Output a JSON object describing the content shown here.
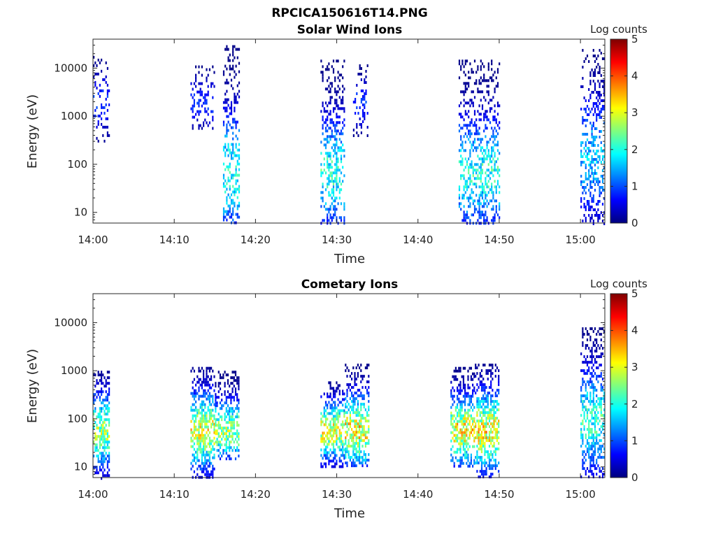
{
  "figure": {
    "title": "RPCICA150616T14.PNG"
  },
  "colormap": [
    "#00007f",
    "#0000ff",
    "#007fff",
    "#00ffff",
    "#7fff7f",
    "#ffff00",
    "#ff7f00",
    "#ff0000",
    "#7f0000"
  ],
  "chart_data": [
    {
      "type": "heatmap",
      "title": "Solar Wind Ions",
      "xlabel": "Time",
      "ylabel": "Energy (eV)",
      "yscale": "log",
      "ylim": [
        6,
        40000
      ],
      "xlim": [
        "14:00",
        "15:03"
      ],
      "x_ticks": [
        "14:00",
        "14:10",
        "14:20",
        "14:30",
        "14:40",
        "14:50",
        "15:00"
      ],
      "y_ticks": [
        "10",
        "100",
        "1000",
        "10000"
      ],
      "colorbar": {
        "label": "Log counts",
        "range": [
          0,
          5
        ],
        "ticks": [
          "0",
          "1",
          "2",
          "3",
          "4",
          "5"
        ]
      },
      "bursts": [
        {
          "start": "14:00",
          "end": "14:02",
          "e_low": 300,
          "e_high": 18000,
          "peak_energy": 2000,
          "peak_log_counts": 1.0,
          "density": 0.35
        },
        {
          "start": "14:12",
          "end": "14:15",
          "e_low": 500,
          "e_high": 13000,
          "peak_energy": 2000,
          "peak_log_counts": 1.0,
          "density": 0.25
        },
        {
          "start": "14:16",
          "end": "14:18",
          "e_low": 6,
          "e_high": 30000,
          "peak_energy": 70,
          "peak_log_counts": 2.3,
          "density": 0.55
        },
        {
          "start": "14:28",
          "end": "14:31",
          "e_low": 6,
          "e_high": 15000,
          "peak_energy": 70,
          "peak_log_counts": 2.3,
          "density": 0.55
        },
        {
          "start": "14:32",
          "end": "14:34",
          "e_low": 400,
          "e_high": 12000,
          "peak_energy": 2000,
          "peak_log_counts": 1.0,
          "density": 0.3
        },
        {
          "start": "14:45",
          "end": "14:50",
          "e_low": 6,
          "e_high": 15000,
          "peak_energy": 70,
          "peak_log_counts": 2.3,
          "density": 0.55
        },
        {
          "start": "15:00",
          "end": "15:03",
          "e_low": 6,
          "e_high": 25000,
          "peak_energy": 150,
          "peak_log_counts": 1.8,
          "density": 0.5
        }
      ]
    },
    {
      "type": "heatmap",
      "title": "Cometary Ions",
      "xlabel": "Time",
      "ylabel": "Energy (eV)",
      "yscale": "log",
      "ylim": [
        6,
        40000
      ],
      "xlim": [
        "14:00",
        "15:03"
      ],
      "x_ticks": [
        "14:00",
        "14:10",
        "14:20",
        "14:30",
        "14:40",
        "14:50",
        "15:00"
      ],
      "y_ticks": [
        "10",
        "100",
        "1000",
        "10000"
      ],
      "colorbar": {
        "label": "Log counts",
        "range": [
          0,
          5
        ],
        "ticks": [
          "0",
          "1",
          "2",
          "3",
          "4",
          "5"
        ]
      },
      "bursts": [
        {
          "start": "14:00",
          "end": "14:02",
          "e_low": 6,
          "e_high": 1000,
          "peak_energy": 60,
          "peak_log_counts": 3.0,
          "density": 0.75
        },
        {
          "start": "14:12",
          "end": "14:15",
          "e_low": 6,
          "e_high": 1200,
          "peak_energy": 60,
          "peak_log_counts": 3.4,
          "density": 0.8
        },
        {
          "start": "14:15",
          "end": "14:18",
          "e_low": 15,
          "e_high": 1000,
          "peak_energy": 60,
          "peak_log_counts": 3.0,
          "density": 0.75
        },
        {
          "start": "14:28",
          "end": "14:31",
          "e_low": 10,
          "e_high": 600,
          "peak_energy": 60,
          "peak_log_counts": 3.4,
          "density": 0.75
        },
        {
          "start": "14:31",
          "end": "14:34",
          "e_low": 10,
          "e_high": 1400,
          "peak_energy": 60,
          "peak_log_counts": 3.6,
          "density": 0.8
        },
        {
          "start": "14:44",
          "end": "14:47",
          "e_low": 10,
          "e_high": 1200,
          "peak_energy": 60,
          "peak_log_counts": 3.6,
          "density": 0.8
        },
        {
          "start": "14:47",
          "end": "14:50",
          "e_low": 6,
          "e_high": 1400,
          "peak_energy": 60,
          "peak_log_counts": 3.6,
          "density": 0.8
        },
        {
          "start": "15:00",
          "end": "15:03",
          "e_low": 6,
          "e_high": 8000,
          "peak_energy": 100,
          "peak_log_counts": 2.4,
          "density": 0.65
        }
      ]
    }
  ]
}
